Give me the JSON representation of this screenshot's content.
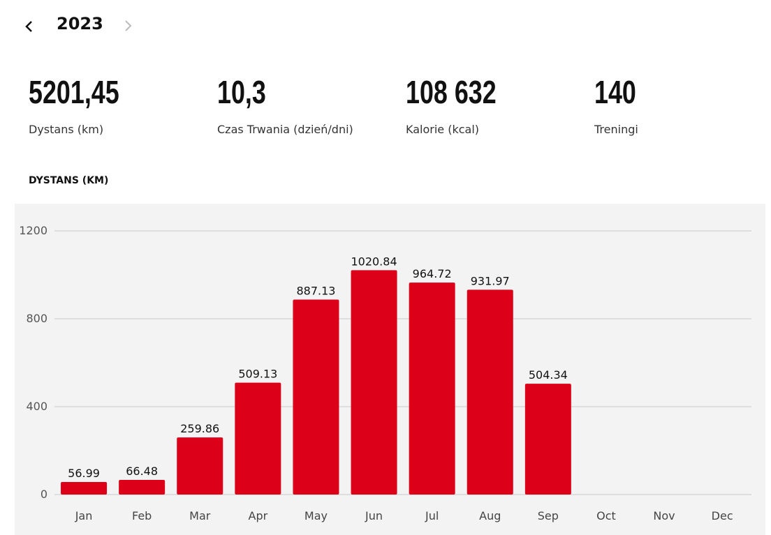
{
  "year": "2023",
  "stats": [
    {
      "value": "5201,45",
      "label": "Dystans (km)"
    },
    {
      "value": "10,3",
      "label": "Czas Trwania (dzień/dni)"
    },
    {
      "value": "108 632",
      "label": "Kalorie (kcal)"
    },
    {
      "value": "140",
      "label": "Treningi"
    }
  ],
  "chart_data": {
    "type": "bar",
    "title": "DYSTANS (KM)",
    "categories": [
      "Jan",
      "Feb",
      "Mar",
      "Apr",
      "May",
      "Jun",
      "Jul",
      "Aug",
      "Sep",
      "Oct",
      "Nov",
      "Dec"
    ],
    "values": [
      56.99,
      66.48,
      259.86,
      509.13,
      887.13,
      1020.84,
      964.72,
      931.97,
      504.34,
      null,
      null,
      null
    ],
    "color": "#dc0019",
    "ylim": [
      0,
      1200
    ],
    "yticks": [
      0,
      400,
      800,
      1200
    ],
    "grid": true
  }
}
